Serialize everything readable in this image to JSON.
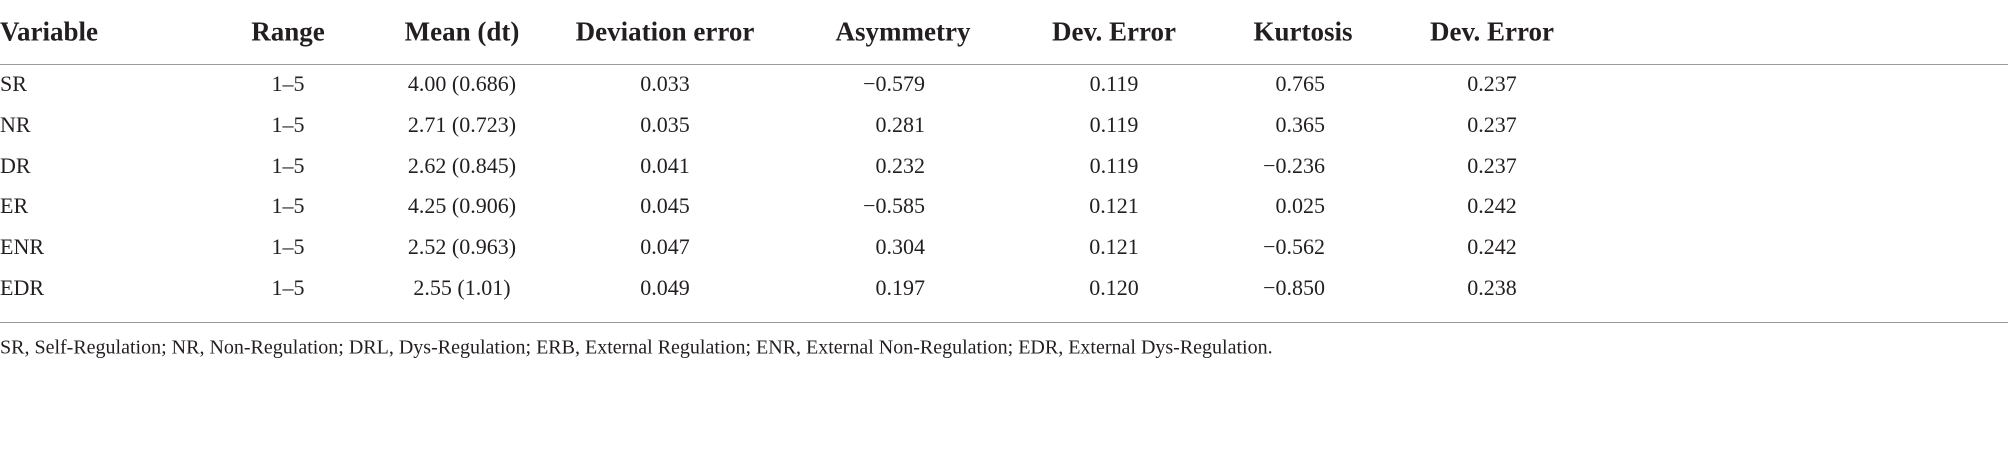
{
  "table": {
    "header": [
      "Variable",
      "Range",
      "Mean (dt)",
      "Deviation error",
      "Asymmetry",
      "Dev. Error",
      "Kurtosis",
      "Dev. Error"
    ],
    "rows": [
      [
        "SR",
        "1–5",
        "4.00 (0.686)",
        "0.033",
        "−0.579",
        "0.119",
        "0.765",
        "0.237"
      ],
      [
        "NR",
        "1–5",
        "2.71 (0.723)",
        "0.035",
        "0.281",
        "0.119",
        "0.365",
        "0.237"
      ],
      [
        "DR",
        "1–5",
        "2.62 (0.845)",
        "0.041",
        "0.232",
        "0.119",
        "−0.236",
        "0.237"
      ],
      [
        "ER",
        "1–5",
        "4.25 (0.906)",
        "0.045",
        "−0.585",
        "0.121",
        "0.025",
        "0.242"
      ],
      [
        "ENR",
        "1–5",
        "2.52 (0.963)",
        "0.047",
        "0.304",
        "0.121",
        "−0.562",
        "0.242"
      ],
      [
        "EDR",
        "1–5",
        "2.55 (1.01)",
        "0.049",
        "0.197",
        "0.120",
        "−0.850",
        "0.238"
      ]
    ],
    "footnote": "SR, Self-Regulation; NR, Non-Regulation; DRL, Dys-Regulation; ERB, External Regulation; ENR, External Non-Regulation; EDR, External Dys-Regulation."
  }
}
